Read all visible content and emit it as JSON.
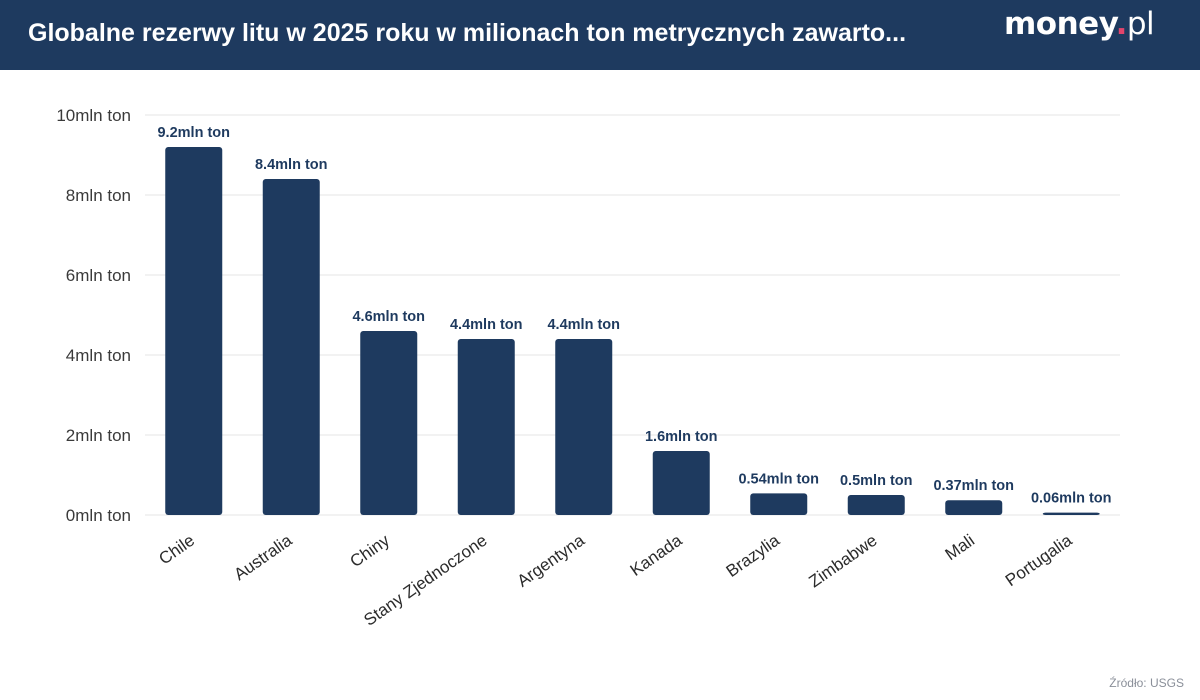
{
  "header": {
    "title": "Globalne rezerwy litu w 2025 roku w milionach ton metrycznych zawarto...",
    "logo_main": "money",
    "logo_dot": ".",
    "logo_tld": "pl"
  },
  "source": "Źródło: USGS",
  "colors": {
    "header_bg": "#1e3a5f",
    "bar": "#1e3a5f",
    "logo_dot": "#e2446b",
    "grid": "#e6e6e6"
  },
  "chart_data": {
    "type": "bar",
    "categories": [
      "Chile",
      "Australia",
      "Chiny",
      "Stany Zjednoczone",
      "Argentyna",
      "Kanada",
      "Brazylia",
      "Zimbabwe",
      "Mali",
      "Portugalia"
    ],
    "values": [
      9.2,
      8.4,
      4.6,
      4.4,
      4.4,
      1.6,
      0.54,
      0.5,
      0.37,
      0.06
    ],
    "data_labels": [
      "9.2mln ton",
      "8.4mln ton",
      "4.6mln ton",
      "4.4mln ton",
      "4.4mln ton",
      "1.6mln ton",
      "0.54mln ton",
      "0.5mln ton",
      "0.37mln ton",
      "0.06mln ton"
    ],
    "y_ticks": [
      0,
      2,
      4,
      6,
      8,
      10
    ],
    "y_tick_labels": [
      "0mln ton",
      "2mln ton",
      "4mln ton",
      "6mln ton",
      "8mln ton",
      "10mln ton"
    ],
    "ylim": [
      0,
      10
    ],
    "grid": true,
    "xlabel": "",
    "ylabel": ""
  }
}
